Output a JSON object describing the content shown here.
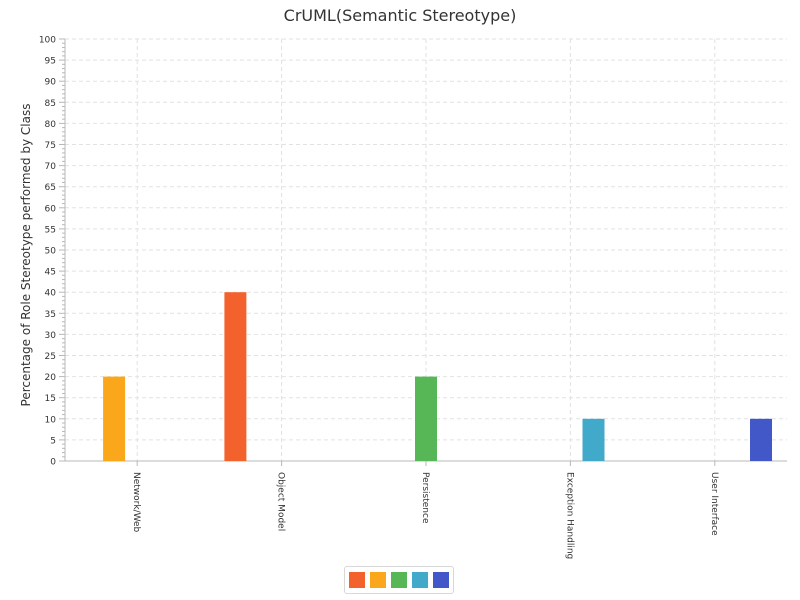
{
  "chart_data": {
    "type": "bar",
    "title": "CrUML(Semantic Stereotype)",
    "xlabel": "",
    "ylabel": "Percentage of Role Stereotype performed by Class",
    "ylim": [
      0,
      100
    ],
    "y_major_ticks": [
      0,
      5,
      10,
      15,
      20,
      25,
      30,
      35,
      40,
      45,
      50,
      55,
      60,
      65,
      70,
      75,
      80,
      85,
      90,
      95,
      100
    ],
    "categories": [
      "Network/Web",
      "Object Model",
      "Persistence",
      "Exception Handling",
      "User Interface"
    ],
    "series": [
      {
        "color": "#f3622d",
        "values": [
          0,
          40,
          0,
          0,
          0
        ]
      },
      {
        "color": "#fba71b",
        "values": [
          20,
          0,
          0,
          0,
          0
        ]
      },
      {
        "color": "#57b757",
        "values": [
          0,
          0,
          20,
          0,
          0
        ]
      },
      {
        "color": "#41a9c9",
        "values": [
          0,
          0,
          0,
          10,
          0
        ]
      },
      {
        "color": "#4258c9",
        "values": [
          0,
          0,
          0,
          0,
          10
        ]
      }
    ],
    "grid": true,
    "legend_position": "bottom-center"
  }
}
